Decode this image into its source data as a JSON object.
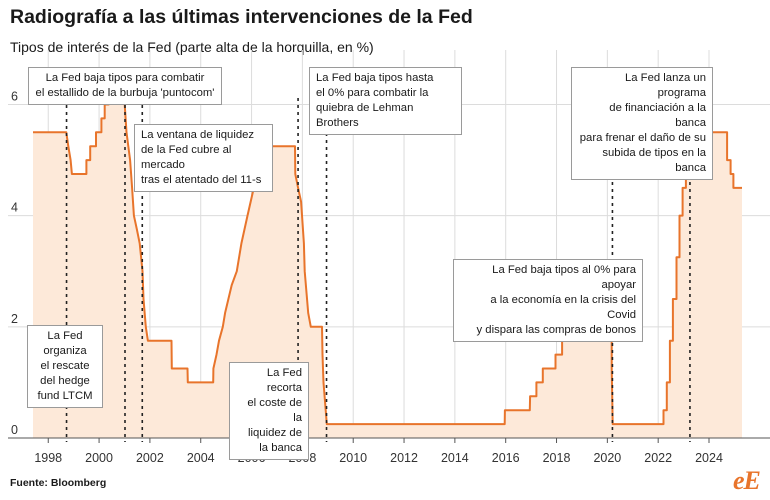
{
  "title": "Radiografía a las últimas intervenciones de la Fed",
  "subtitle": "Tipos de interés de la Fed (parte alta de la horquilla, en %)",
  "source": "Fuente: Bloomberg",
  "logo": "eE",
  "colors": {
    "line": "#e8742b",
    "area": "#fde9d9",
    "grid": "#dcdcdc",
    "axis": "#555555",
    "event_line": "#222222"
  },
  "chart_data": {
    "type": "area",
    "xlim": [
      1997.4,
      2026.4
    ],
    "ylim": [
      0,
      6.8
    ],
    "yticks": [
      0,
      2,
      4,
      6
    ],
    "xticks": [
      1998,
      2000,
      2002,
      2004,
      2006,
      2008,
      2010,
      2012,
      2014,
      2016,
      2018,
      2020,
      2022,
      2024
    ],
    "grid": true,
    "series": [
      {
        "points": [
          [
            1997.4,
            5.5
          ],
          [
            1998.71,
            5.5
          ],
          [
            1998.79,
            5.25
          ],
          [
            1998.88,
            5.0
          ],
          [
            1998.93,
            4.75
          ],
          [
            1999.5,
            4.75
          ],
          [
            1999.5,
            5.0
          ],
          [
            1999.65,
            5.0
          ],
          [
            1999.65,
            5.25
          ],
          [
            1999.88,
            5.25
          ],
          [
            1999.88,
            5.5
          ],
          [
            2000.09,
            5.5
          ],
          [
            2000.09,
            5.75
          ],
          [
            2000.22,
            5.75
          ],
          [
            2000.22,
            6.0
          ],
          [
            2000.38,
            6.0
          ],
          [
            2000.38,
            6.5
          ],
          [
            2001.0,
            6.5
          ],
          [
            2001.01,
            6.0
          ],
          [
            2001.08,
            5.5
          ],
          [
            2001.22,
            5.0
          ],
          [
            2001.3,
            4.5
          ],
          [
            2001.37,
            4.0
          ],
          [
            2001.49,
            3.75
          ],
          [
            2001.6,
            3.5
          ],
          [
            2001.71,
            3.0
          ],
          [
            2001.75,
            2.5
          ],
          [
            2001.84,
            2.0
          ],
          [
            2001.92,
            1.75
          ],
          [
            2002.85,
            1.75
          ],
          [
            2002.86,
            1.25
          ],
          [
            2003.48,
            1.25
          ],
          [
            2003.49,
            1.0
          ],
          [
            2004.49,
            1.0
          ],
          [
            2004.5,
            1.25
          ],
          [
            2004.62,
            1.5
          ],
          [
            2004.72,
            1.75
          ],
          [
            2004.87,
            2.0
          ],
          [
            2004.96,
            2.25
          ],
          [
            2005.09,
            2.5
          ],
          [
            2005.22,
            2.75
          ],
          [
            2005.42,
            3.0
          ],
          [
            2005.6,
            3.5
          ],
          [
            2005.84,
            4.0
          ],
          [
            2006.09,
            4.5
          ],
          [
            2006.25,
            4.75
          ],
          [
            2006.34,
            5.0
          ],
          [
            2006.49,
            5.25
          ],
          [
            2007.71,
            5.25
          ],
          [
            2007.72,
            4.75
          ],
          [
            2007.83,
            4.5
          ],
          [
            2007.95,
            4.25
          ],
          [
            2008.06,
            3.5
          ],
          [
            2008.09,
            3.0
          ],
          [
            2008.23,
            2.25
          ],
          [
            2008.33,
            2.0
          ],
          [
            2008.77,
            2.0
          ],
          [
            2008.79,
            1.5
          ],
          [
            2008.83,
            1.0
          ],
          [
            2008.96,
            0.25
          ],
          [
            2015.96,
            0.25
          ],
          [
            2015.97,
            0.5
          ],
          [
            2016.95,
            0.5
          ],
          [
            2016.96,
            0.75
          ],
          [
            2017.21,
            0.75
          ],
          [
            2017.21,
            1.0
          ],
          [
            2017.46,
            1.0
          ],
          [
            2017.46,
            1.25
          ],
          [
            2017.96,
            1.25
          ],
          [
            2017.96,
            1.5
          ],
          [
            2018.22,
            1.5
          ],
          [
            2018.22,
            1.75
          ],
          [
            2018.46,
            1.75
          ],
          [
            2018.46,
            2.0
          ],
          [
            2018.74,
            2.0
          ],
          [
            2018.74,
            2.25
          ],
          [
            2018.97,
            2.25
          ],
          [
            2018.97,
            2.5
          ],
          [
            2019.58,
            2.5
          ],
          [
            2019.58,
            2.25
          ],
          [
            2019.71,
            2.25
          ],
          [
            2019.71,
            2.0
          ],
          [
            2019.83,
            2.0
          ],
          [
            2019.83,
            1.75
          ],
          [
            2020.17,
            1.75
          ],
          [
            2020.17,
            1.25
          ],
          [
            2020.21,
            0.25
          ],
          [
            2022.21,
            0.25
          ],
          [
            2022.21,
            0.5
          ],
          [
            2022.34,
            0.5
          ],
          [
            2022.34,
            1.0
          ],
          [
            2022.46,
            1.0
          ],
          [
            2022.46,
            1.75
          ],
          [
            2022.58,
            1.75
          ],
          [
            2022.58,
            2.5
          ],
          [
            2022.72,
            2.5
          ],
          [
            2022.72,
            3.25
          ],
          [
            2022.84,
            3.25
          ],
          [
            2022.84,
            4.0
          ],
          [
            2022.96,
            4.0
          ],
          [
            2022.96,
            4.5
          ],
          [
            2023.09,
            4.5
          ],
          [
            2023.09,
            4.75
          ],
          [
            2023.25,
            4.75
          ],
          [
            2023.25,
            5.0
          ],
          [
            2023.34,
            5.0
          ],
          [
            2023.34,
            5.25
          ],
          [
            2023.56,
            5.25
          ],
          [
            2023.56,
            5.5
          ],
          [
            2024.71,
            5.5
          ],
          [
            2024.71,
            5.0
          ],
          [
            2024.85,
            5.0
          ],
          [
            2024.85,
            4.75
          ],
          [
            2024.96,
            4.75
          ],
          [
            2024.96,
            4.5
          ],
          [
            2025.3,
            4.5
          ]
        ]
      }
    ],
    "events": [
      {
        "x": 1998.72,
        "text": "La Fed organiza el rescate del hedge fund LTCM"
      },
      {
        "x": 2001.02,
        "text": "La Fed baja tipos para combatir el estallido de la burbuja 'puntocom'"
      },
      {
        "x": 2001.7,
        "text": "La ventana de liquidez de la Fed cubre al mercado tras el atentado del 11-s"
      },
      {
        "x": 2007.83,
        "text": "La Fed recorta el coste de la liquidez de la banca"
      },
      {
        "x": 2008.95,
        "text": "La Fed baja tipos hasta el 0% para combatir la quiebra de Lehman Brothers"
      },
      {
        "x": 2020.2,
        "text": "La Fed baja tipos al 0% para apoyar a la economía en la crisis del Covid y dispara las compras de bonos"
      },
      {
        "x": 2023.25,
        "text": "La Fed lanza un programa de financiación a la banca para frenar el daño de su subida de tipos en la banca"
      }
    ]
  },
  "annotations": {
    "ltcm": [
      "La Fed",
      "organiza",
      "el rescate",
      "del hedge",
      "fund LTCM"
    ],
    "puntocom": [
      "La Fed baja tipos para combatir",
      "el estallido de la burbuja 'puntocom'"
    ],
    "once_s": [
      "La ventana de liquidez",
      "de la Fed cubre al mercado",
      "tras el atentado del 11-s"
    ],
    "liquidez": [
      "La Fed recorta",
      "el coste de la",
      "liquidez de",
      "la banca"
    ],
    "lehman": [
      "La Fed baja tipos hasta",
      "el 0% para combatir la",
      "quiebra de Lehman Brothers"
    ],
    "covid": [
      "La Fed baja tipos al 0% para apoyar",
      "a la economía en la crisis del Covid",
      "y dispara las compras de bonos"
    ],
    "banca": [
      "La Fed lanza un programa",
      "de financiación a la banca",
      "para frenar el daño de su",
      "subida de tipos en la banca"
    ]
  }
}
